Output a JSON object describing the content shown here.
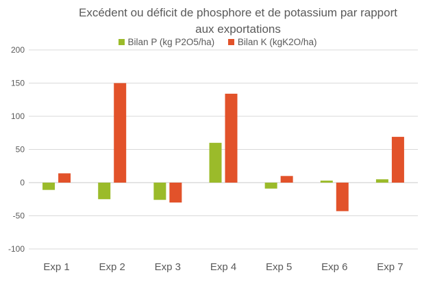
{
  "chart_data": {
    "type": "bar",
    "title_lines": [
      "Excédent ou déficit de phosphore et de potassium par rapport",
      "aux exportations"
    ],
    "categories": [
      "Exp 1",
      "Exp 2",
      "Exp 3",
      "Exp 4",
      "Exp 5",
      "Exp 6",
      "Exp 7"
    ],
    "series": [
      {
        "name": "Bilan P (kg P2O5/ha)",
        "color": "#9BBB2A",
        "values": [
          -11,
          -25,
          -26,
          60,
          -9,
          3,
          5
        ]
      },
      {
        "name": "Bilan K (kgK2O/ha)",
        "color": "#E2522A",
        "values": [
          14,
          150,
          -30,
          134,
          10,
          -43,
          69
        ]
      }
    ],
    "yticks": [
      200,
      150,
      100,
      50,
      0,
      -50,
      -100
    ],
    "ylim": [
      -100,
      200
    ],
    "grid": true,
    "legend_position": "top"
  }
}
